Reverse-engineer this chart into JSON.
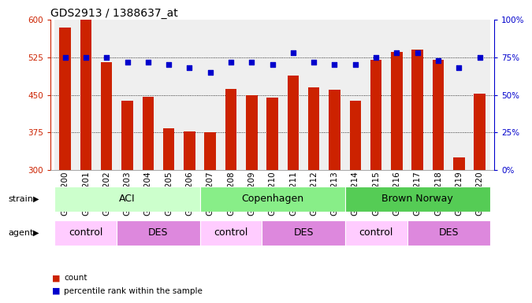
{
  "title": "GDS2913 / 1388637_at",
  "samples": [
    "GSM92200",
    "GSM92201",
    "GSM92202",
    "GSM92203",
    "GSM92204",
    "GSM92205",
    "GSM92206",
    "GSM92207",
    "GSM92208",
    "GSM92209",
    "GSM92210",
    "GSM92211",
    "GSM92212",
    "GSM92213",
    "GSM92214",
    "GSM92215",
    "GSM92216",
    "GSM92217",
    "GSM92218",
    "GSM92219",
    "GSM92220"
  ],
  "counts": [
    585,
    600,
    515,
    438,
    446,
    383,
    378,
    375,
    462,
    450,
    445,
    488,
    465,
    460,
    438,
    520,
    535,
    540,
    520,
    325,
    452
  ],
  "percentile_ranks": [
    75,
    75,
    75,
    72,
    72,
    70,
    68,
    65,
    72,
    72,
    70,
    78,
    72,
    70,
    70,
    75,
    78,
    78,
    73,
    68,
    75
  ],
  "ylim_left": [
    300,
    600
  ],
  "ylim_right": [
    0,
    100
  ],
  "yticks_left": [
    300,
    375,
    450,
    525,
    600
  ],
  "yticks_right": [
    0,
    25,
    50,
    75,
    100
  ],
  "bar_color": "#cc2200",
  "dot_color": "#0000cc",
  "strain_groups": [
    {
      "label": "ACI",
      "start": 0,
      "end": 6,
      "color": "#ccffcc"
    },
    {
      "label": "Copenhagen",
      "start": 7,
      "end": 13,
      "color": "#88ee88"
    },
    {
      "label": "Brown Norway",
      "start": 14,
      "end": 20,
      "color": "#55cc55"
    }
  ],
  "agent_groups": [
    {
      "label": "control",
      "start": 0,
      "end": 2,
      "color": "#ffccff"
    },
    {
      "label": "DES",
      "start": 3,
      "end": 6,
      "color": "#dd88dd"
    },
    {
      "label": "control",
      "start": 7,
      "end": 9,
      "color": "#ffccff"
    },
    {
      "label": "DES",
      "start": 10,
      "end": 13,
      "color": "#dd88dd"
    },
    {
      "label": "control",
      "start": 14,
      "end": 16,
      "color": "#ffccff"
    },
    {
      "label": "DES",
      "start": 17,
      "end": 20,
      "color": "#dd88dd"
    }
  ],
  "legend_count_color": "#cc2200",
  "legend_dot_color": "#0000cc",
  "xlabel_strain": "strain",
  "xlabel_agent": "agent",
  "title_fontsize": 10,
  "tick_fontsize": 7.5,
  "row_label_fontsize": 8,
  "group_label_fontsize": 9
}
